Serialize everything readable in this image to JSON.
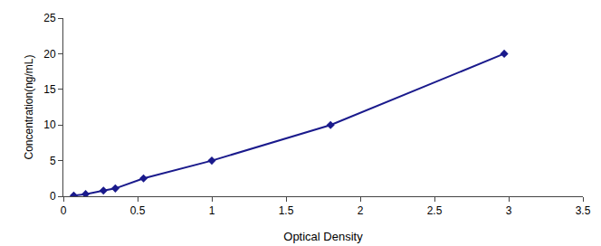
{
  "chart_data": {
    "type": "line",
    "x": [
      0.07,
      0.15,
      0.27,
      0.35,
      0.54,
      1.0,
      1.8,
      2.97
    ],
    "values": [
      0.1,
      0.3,
      0.8,
      1.1,
      2.5,
      5.0,
      10.0,
      20.0
    ],
    "color": "#1a1a8c",
    "marker": "diamond",
    "line_style": "solid",
    "xlabel": "Optical Density",
    "ylabel": "Concentration(ng/mL)",
    "xlim": [
      0,
      3.5
    ],
    "ylim": [
      0,
      25
    ],
    "xticks": [
      0,
      0.5,
      1,
      1.5,
      2,
      2.5,
      3,
      3.5
    ],
    "yticks": [
      0,
      5,
      10,
      15,
      20,
      25
    ],
    "grid": false
  }
}
